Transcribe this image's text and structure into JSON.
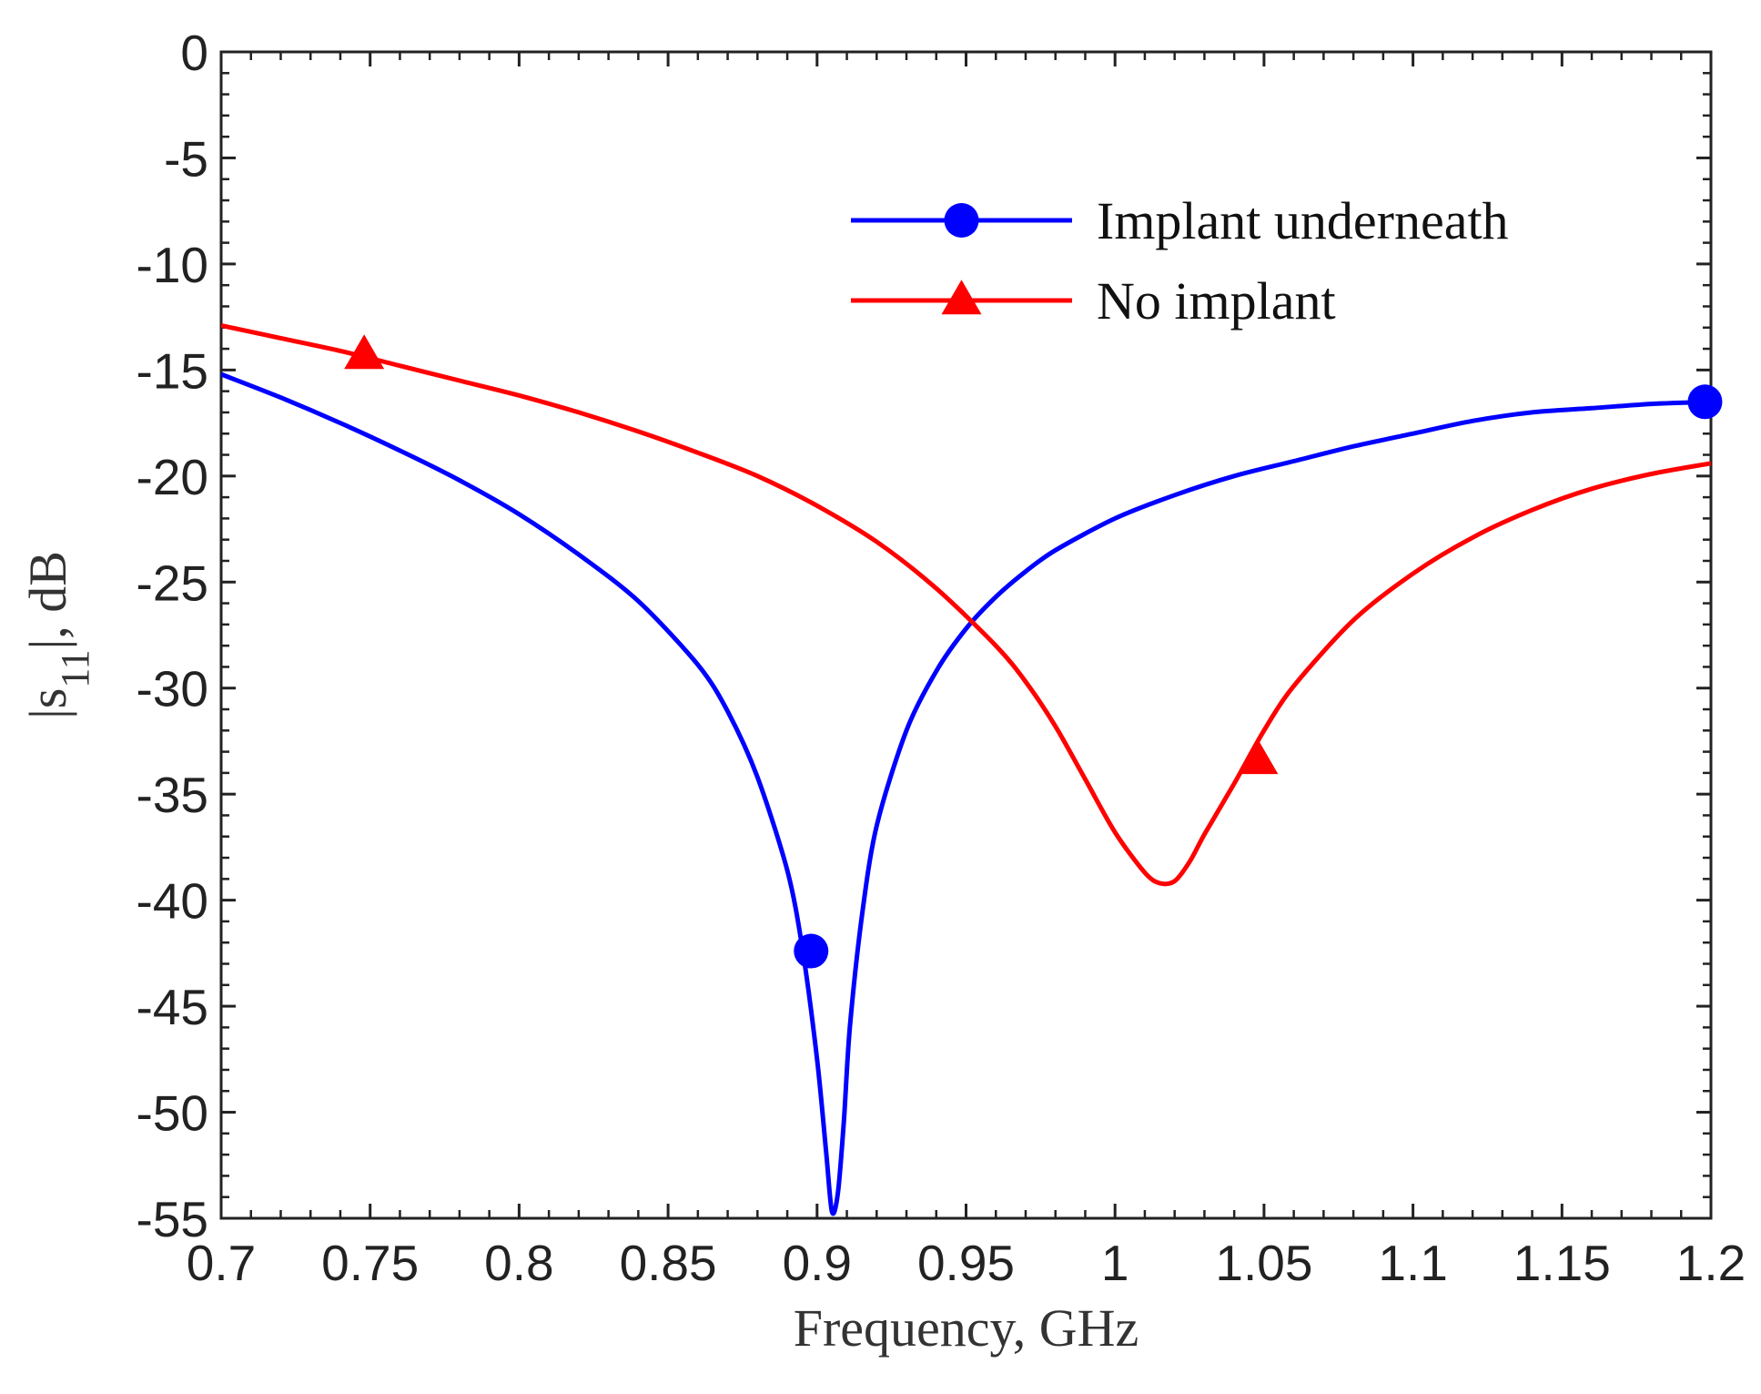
{
  "chart_data": {
    "type": "line",
    "title": "",
    "xlabel": "Frequency, GHz",
    "ylabel_parts": [
      "|s",
      "11",
      "|, dB"
    ],
    "xlim": [
      0.7,
      1.2
    ],
    "ylim": [
      -55,
      0
    ],
    "xticks": [
      0.7,
      0.75,
      0.8,
      0.85,
      0.9,
      0.95,
      1,
      1.05,
      1.1,
      1.15,
      1.2
    ],
    "xtick_labels": [
      "0.7",
      "0.75",
      "0.8",
      "0.85",
      "0.9",
      "0.95",
      "1",
      "1.05",
      "1.1",
      "1.15",
      "1.2"
    ],
    "yticks": [
      0,
      -5,
      -10,
      -15,
      -20,
      -25,
      -30,
      -35,
      -40,
      -45,
      -50,
      -55
    ],
    "ytick_labels": [
      "0",
      "-5",
      "-10",
      "-15",
      "-20",
      "-25",
      "-30",
      "-35",
      "-40",
      "-45",
      "-50",
      "-55"
    ],
    "grid": false,
    "legend_position": "top-right",
    "series": [
      {
        "name": "Implant underneath",
        "color": "#0000ff",
        "marker": "circle",
        "x": [
          0.7,
          0.72,
          0.74,
          0.76,
          0.78,
          0.8,
          0.82,
          0.84,
          0.86,
          0.87,
          0.88,
          0.89,
          0.895,
          0.9,
          0.903,
          0.905,
          0.907,
          0.909,
          0.911,
          0.915,
          0.92,
          0.93,
          0.94,
          0.95,
          0.96,
          0.97,
          0.98,
          1.0,
          1.02,
          1.04,
          1.06,
          1.08,
          1.1,
          1.12,
          1.14,
          1.16,
          1.18,
          1.2
        ],
        "y": [
          -15.2,
          -16.3,
          -17.5,
          -18.8,
          -20.2,
          -21.8,
          -23.7,
          -25.9,
          -28.9,
          -31.1,
          -34.2,
          -38.6,
          -42.2,
          -47.5,
          -51.8,
          -54.7,
          -53.8,
          -50.4,
          -46.0,
          -40.8,
          -36.5,
          -32.0,
          -29.2,
          -27.2,
          -25.7,
          -24.5,
          -23.5,
          -22.0,
          -20.9,
          -20.0,
          -19.3,
          -18.6,
          -18.0,
          -17.4,
          -17.0,
          -16.8,
          -16.6,
          -16.5
        ],
        "marker_x": [
          0.898,
          1.198
        ],
        "marker_y": [
          -42.4,
          -16.5
        ]
      },
      {
        "name": "No implant",
        "color": "#ff0000",
        "marker": "triangle",
        "x": [
          0.7,
          0.72,
          0.74,
          0.76,
          0.78,
          0.8,
          0.82,
          0.84,
          0.86,
          0.88,
          0.9,
          0.92,
          0.94,
          0.96,
          0.97,
          0.98,
          0.99,
          1.0,
          1.01,
          1.015,
          1.02,
          1.025,
          1.03,
          1.04,
          1.05,
          1.06,
          1.08,
          1.1,
          1.12,
          1.14,
          1.16,
          1.18,
          1.2
        ],
        "y": [
          -12.9,
          -13.5,
          -14.1,
          -14.8,
          -15.5,
          -16.2,
          -17.0,
          -17.9,
          -18.9,
          -20.0,
          -21.4,
          -23.1,
          -25.3,
          -28.0,
          -29.7,
          -31.8,
          -34.3,
          -36.8,
          -38.7,
          -39.2,
          -39.1,
          -38.2,
          -36.9,
          -34.5,
          -32.0,
          -29.9,
          -26.8,
          -24.6,
          -22.9,
          -21.6,
          -20.6,
          -19.9,
          -19.4
        ],
        "marker_x": [
          0.748,
          1.048
        ],
        "marker_y": [
          -14.3,
          -33.4
        ]
      }
    ]
  }
}
